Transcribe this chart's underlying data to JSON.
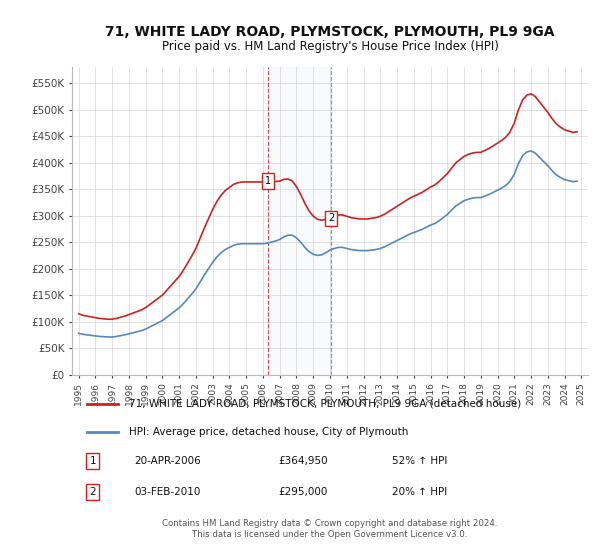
{
  "title": "71, WHITE LADY ROAD, PLYMSTOCK, PLYMOUTH, PL9 9GA",
  "subtitle": "Price paid vs. HM Land Registry's House Price Index (HPI)",
  "title_fontsize": 10,
  "subtitle_fontsize": 8.5,
  "ylabel_ticks": [
    "£0",
    "£50K",
    "£100K",
    "£150K",
    "£200K",
    "£250K",
    "£300K",
    "£350K",
    "£400K",
    "£450K",
    "£500K",
    "£550K"
  ],
  "ytick_values": [
    0,
    50000,
    100000,
    150000,
    200000,
    250000,
    300000,
    350000,
    400000,
    450000,
    500000,
    550000
  ],
  "ylim": [
    0,
    580000
  ],
  "hpi_color": "#5588bb",
  "price_color": "#cc2222",
  "legend_label_price": "71, WHITE LADY ROAD, PLYMSTOCK, PLYMOUTH, PL9 9GA (detached house)",
  "legend_label_hpi": "HPI: Average price, detached house, City of Plymouth",
  "sale1_date": "20-APR-2006",
  "sale1_price": "£364,950",
  "sale1_hpi": "52% ↑ HPI",
  "sale2_date": "03-FEB-2010",
  "sale2_price": "£295,000",
  "sale2_hpi": "20% ↑ HPI",
  "footnote": "Contains HM Land Registry data © Crown copyright and database right 2024.\nThis data is licensed under the Open Government Licence v3.0.",
  "background_color": "#ffffff",
  "plot_bg_color": "#ffffff",
  "grid_color": "#dddddd",
  "sale1_x": 2006.3,
  "sale2_x": 2010.08,
  "sale1_y": 364950,
  "sale2_y": 295000,
  "xlim_min": 1994.6,
  "xlim_max": 2025.4,
  "xticks": [
    1995,
    1996,
    1997,
    1998,
    1999,
    2000,
    2001,
    2002,
    2003,
    2004,
    2005,
    2006,
    2007,
    2008,
    2009,
    2010,
    2011,
    2012,
    2013,
    2014,
    2015,
    2016,
    2017,
    2018,
    2019,
    2020,
    2021,
    2022,
    2023,
    2024,
    2025
  ]
}
